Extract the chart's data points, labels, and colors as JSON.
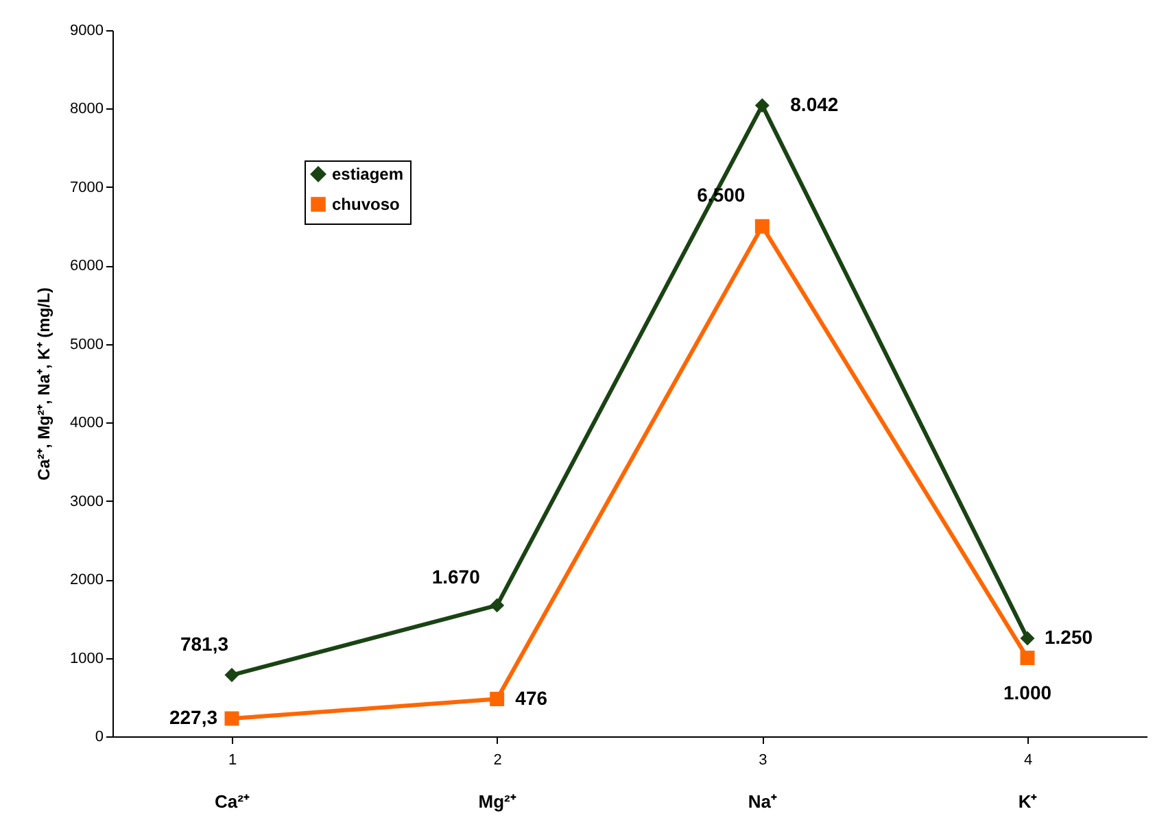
{
  "chart_data": {
    "type": "line",
    "ylabel": "Ca²⁺, Mg²⁺, Na⁺, K⁺ (mg/L)",
    "categories": [
      "1",
      "2",
      "3",
      "4"
    ],
    "series": [
      {
        "name": "estiagem",
        "color": "#1a4314",
        "marker": "diamond",
        "values": [
          781.3,
          1670,
          8042,
          1250
        ],
        "value_labels": [
          "781,3",
          "1.670",
          "8.042",
          "1.250"
        ]
      },
      {
        "name": "chuvoso",
        "color": "#ff6600",
        "marker": "square",
        "values": [
          227.3,
          476,
          6500,
          1000
        ],
        "value_labels": [
          "227,3",
          "476",
          "6.500",
          "1.000"
        ]
      }
    ],
    "ylim": [
      0,
      9000
    ],
    "yticks": [
      0,
      1000,
      2000,
      3000,
      4000,
      5000,
      6000,
      7000,
      8000,
      9000
    ],
    "grid": false,
    "legend": "top left",
    "annotations": [
      "Ca²⁺",
      "Mg²⁺",
      "Na⁺",
      "K⁺"
    ]
  }
}
